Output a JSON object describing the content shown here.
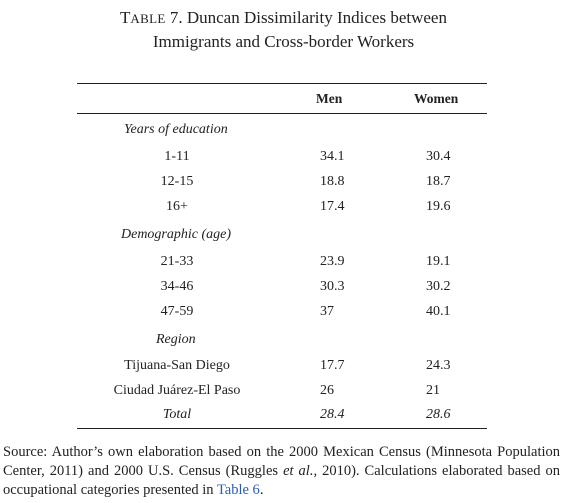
{
  "title": {
    "prefix_cap": "T",
    "prefix_small": "ABLE",
    "number_and_line1": " 7. Duncan Dissimilarity Indices between",
    "line2": "Immigrants and Cross-border Workers"
  },
  "table": {
    "headers": {
      "men": "Men",
      "women": "Women"
    },
    "sections": [
      {
        "name": "Years of education",
        "rows": [
          {
            "label": "1-11",
            "men": "34.1",
            "women": "30.4"
          },
          {
            "label": "12-15",
            "men": "18.8",
            "women": "18.7"
          },
          {
            "label": "16+",
            "men": "17.4",
            "women": "19.6"
          }
        ]
      },
      {
        "name": "Demographic (age)",
        "rows": [
          {
            "label": "21-33",
            "men": "23.9",
            "women": "19.1"
          },
          {
            "label": "34-46",
            "men": "30.3",
            "women": "30.2"
          },
          {
            "label": "47-59",
            "men": "37",
            "women": "40.1"
          }
        ]
      },
      {
        "name": "Region",
        "rows": [
          {
            "label": "Tijuana-San Diego",
            "men": "17.7",
            "women": "24.3"
          },
          {
            "label": "Ciudad Juárez-El Paso",
            "men": "26",
            "women": "21"
          }
        ]
      }
    ],
    "total": {
      "label": "Total",
      "men": "28.4",
      "women": "28.6"
    }
  },
  "source": {
    "part1": "Source: Author’s own elaboration based on the 2000 Mexican Census (Minnesota Population Center, 2011) and 2000 U.S. Census (Ruggles ",
    "et_al": "et al.",
    "part2": ", 2010). Calculations elaborated based on occupational categories presented in ",
    "link": "Table 6",
    "end": "."
  }
}
